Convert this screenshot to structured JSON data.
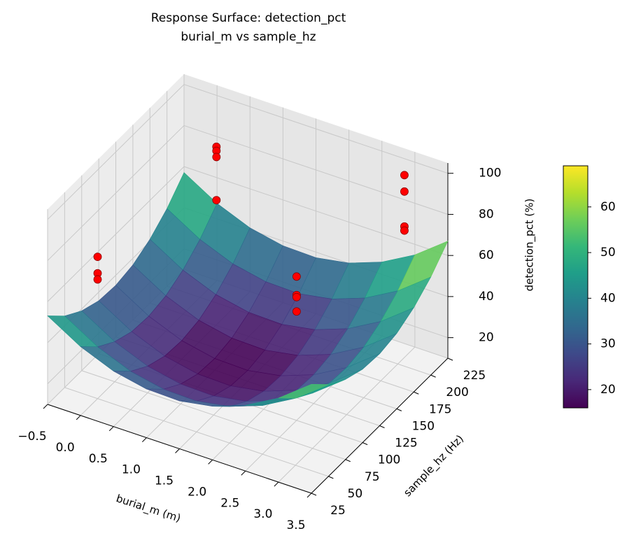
{
  "chart_data": {
    "type": "surface3d",
    "title": "Response Surface: detection_pct",
    "subtitle": "burial_m vs sample_hz",
    "xlabel": "burial_m (m)",
    "ylabel": "sample_hz (Hz)",
    "zlabel": "detection_pct (%)",
    "xlim": [
      -0.5,
      3.5
    ],
    "ylim": [
      25,
      225
    ],
    "zlim": [
      10,
      105
    ],
    "xticks": [
      {
        "value": -0.5,
        "label": "−0.5"
      },
      {
        "value": 0,
        "label": "0.0"
      },
      0.5,
      {
        "value": 1,
        "label": "1.0"
      },
      1.5,
      {
        "value": 2,
        "label": "2.0"
      },
      2.5,
      {
        "value": 3,
        "label": "3.0"
      },
      3.5
    ],
    "yticks": [
      25,
      50,
      75,
      100,
      125,
      150,
      175,
      200,
      225
    ],
    "zticks": [
      20,
      40,
      60,
      80,
      100
    ],
    "grid": true,
    "colormap": "viridis",
    "colorbar": {
      "lim": [
        16,
        69
      ],
      "ticks": [
        20,
        30,
        40,
        50,
        60
      ]
    },
    "surface": {
      "x": [
        -0.5,
        0,
        0.5,
        1,
        1.5,
        2,
        2.5,
        3,
        3.5
      ],
      "y": [
        25,
        50,
        75,
        100,
        125,
        150,
        175,
        200,
        225
      ],
      "z": [
        [
          53.1,
          44.8,
          39.1,
          35.8,
          35.1,
          36.8,
          41.1,
          47.8,
          57.1
        ],
        [
          43.5,
          35.2,
          29.5,
          26.2,
          25.5,
          27.2,
          31.5,
          38.2,
          47.5
        ],
        [
          37,
          28.7,
          23,
          19.7,
          19,
          20.7,
          25,
          31.7,
          41
        ],
        [
          33.7,
          25.4,
          19.7,
          16.4,
          15.7,
          17.4,
          21.7,
          28.4,
          37.7
        ],
        [
          33.3,
          25,
          19.3,
          16,
          15.3,
          17,
          21.3,
          28,
          37.3
        ],
        [
          36.1,
          27.8,
          22.1,
          18.8,
          18.1,
          19.8,
          24.1,
          30.8,
          40.1
        ],
        [
          42,
          33.7,
          28,
          24.7,
          24,
          25.7,
          30,
          36.7,
          46
        ],
        [
          50.9,
          42.6,
          36.9,
          33.6,
          32.9,
          34.6,
          38.9,
          45.6,
          54.9
        ],
        [
          63,
          54.7,
          49,
          45.7,
          45,
          46.7,
          51,
          57.7,
          67
        ]
      ]
    },
    "points": {
      "color": "#ff0000",
      "x": [
        0,
        0,
        0,
        0.25,
        0.25,
        0.25,
        0.25,
        2.5,
        2.5,
        2.5,
        2.5,
        3.1,
        3.1,
        3.1,
        3.1
      ],
      "y": [
        50,
        50,
        50,
        200,
        200,
        200,
        200,
        100,
        100,
        100,
        100,
        200,
        200,
        200,
        200
      ],
      "z": [
        79,
        71,
        68,
        86,
        84,
        81,
        60,
        80,
        71,
        70,
        63,
        103,
        95,
        78,
        76
      ]
    }
  }
}
